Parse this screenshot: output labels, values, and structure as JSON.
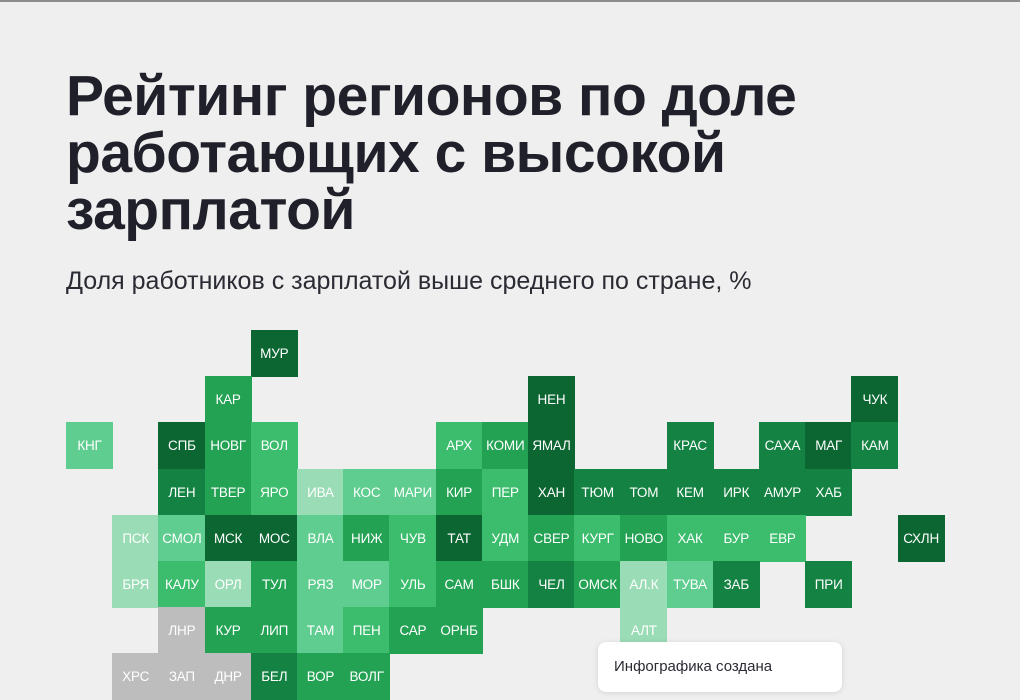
{
  "title_lines": [
    "Рейтинг регионов по доле",
    "работающих с высокой",
    "зарплатой"
  ],
  "subtitle": "Доля работников с зарплатой выше среднего по стране, %",
  "credit": "Инфографика создана",
  "colors": {
    "background": "#efefef",
    "text": "#1f2029",
    "shade_lightest": "#9adcb6",
    "shade_light": "#5fcd8f",
    "shade_mid": "#3bbd6d",
    "shade_strong": "#23a254",
    "shade_dark": "#138242",
    "shade_darkest": "#0b6632",
    "no_data": "#bdbdbd"
  },
  "regions": [
    {
      "label": "МУР",
      "shade": "darkest"
    },
    {
      "label": "КАР",
      "shade": "strong"
    },
    {
      "label": "НЕН",
      "shade": "darkest"
    },
    {
      "label": "ЧУК",
      "shade": "darkest"
    },
    {
      "label": "КНГ",
      "shade": "light"
    },
    {
      "label": "СПБ",
      "shade": "darkest"
    },
    {
      "label": "НОВГ",
      "shade": "strong"
    },
    {
      "label": "ВОЛ",
      "shade": "mid"
    },
    {
      "label": "АРХ",
      "shade": "mid"
    },
    {
      "label": "КОМИ",
      "shade": "strong"
    },
    {
      "label": "ЯМАЛ",
      "shade": "darkest"
    },
    {
      "label": "КРАС",
      "shade": "dark"
    },
    {
      "label": "САХА",
      "shade": "dark"
    },
    {
      "label": "МАГ",
      "shade": "darkest"
    },
    {
      "label": "КАМ",
      "shade": "dark"
    },
    {
      "label": "ЛЕН",
      "shade": "dark"
    },
    {
      "label": "ТВЕР",
      "shade": "strong"
    },
    {
      "label": "ЯРО",
      "shade": "mid"
    },
    {
      "label": "ИВА",
      "shade": "lightest"
    },
    {
      "label": "КОС",
      "shade": "light"
    },
    {
      "label": "МАРИ",
      "shade": "light"
    },
    {
      "label": "КИР",
      "shade": "strong"
    },
    {
      "label": "ПЕР",
      "shade": "mid"
    },
    {
      "label": "ХАН",
      "shade": "darkest"
    },
    {
      "label": "ТЮМ",
      "shade": "dark"
    },
    {
      "label": "ТОМ",
      "shade": "dark"
    },
    {
      "label": "КЕМ",
      "shade": "dark"
    },
    {
      "label": "ИРК",
      "shade": "dark"
    },
    {
      "label": "АМУР",
      "shade": "dark"
    },
    {
      "label": "ХАБ",
      "shade": "dark"
    },
    {
      "label": "ПСК",
      "shade": "lightest"
    },
    {
      "label": "СМОЛ",
      "shade": "light"
    },
    {
      "label": "МСК",
      "shade": "darkest"
    },
    {
      "label": "МОС",
      "shade": "darkest"
    },
    {
      "label": "ВЛА",
      "shade": "light"
    },
    {
      "label": "НИЖ",
      "shade": "strong"
    },
    {
      "label": "ЧУВ",
      "shade": "mid"
    },
    {
      "label": "ТАТ",
      "shade": "darkest"
    },
    {
      "label": "УДМ",
      "shade": "mid"
    },
    {
      "label": "СВЕР",
      "shade": "strong"
    },
    {
      "label": "КУРГ",
      "shade": "mid"
    },
    {
      "label": "НОВО",
      "shade": "strong"
    },
    {
      "label": "ХАК",
      "shade": "mid"
    },
    {
      "label": "БУР",
      "shade": "mid"
    },
    {
      "label": "ЕВР",
      "shade": "mid"
    },
    {
      "label": "СХЛН",
      "shade": "darkest"
    },
    {
      "label": "БРЯ",
      "shade": "lightest"
    },
    {
      "label": "КАЛУ",
      "shade": "mid"
    },
    {
      "label": "ОРЛ",
      "shade": "lightest"
    },
    {
      "label": "ТУЛ",
      "shade": "strong"
    },
    {
      "label": "РЯЗ",
      "shade": "light"
    },
    {
      "label": "МОР",
      "shade": "light"
    },
    {
      "label": "УЛЬ",
      "shade": "mid"
    },
    {
      "label": "САМ",
      "shade": "strong"
    },
    {
      "label": "БШК",
      "shade": "strong"
    },
    {
      "label": "ЧЕЛ",
      "shade": "dark"
    },
    {
      "label": "ОМСК",
      "shade": "strong"
    },
    {
      "label": "АЛ.К",
      "shade": "lightest"
    },
    {
      "label": "ТУВА",
      "shade": "light"
    },
    {
      "label": "ЗАБ",
      "shade": "dark"
    },
    {
      "label": "ПРИ",
      "shade": "dark"
    },
    {
      "label": "ЛНР",
      "shade": "no_data"
    },
    {
      "label": "КУР",
      "shade": "strong"
    },
    {
      "label": "ЛИП",
      "shade": "strong"
    },
    {
      "label": "ТАМ",
      "shade": "light"
    },
    {
      "label": "ПЕН",
      "shade": "mid"
    },
    {
      "label": "САР",
      "shade": "strong"
    },
    {
      "label": "ОРНБ",
      "shade": "strong"
    },
    {
      "label": "АЛТ",
      "shade": "lightest"
    },
    {
      "label": "ХРС",
      "shade": "no_data"
    },
    {
      "label": "ЗАП",
      "shade": "no_data"
    },
    {
      "label": "ДНР",
      "shade": "no_data"
    },
    {
      "label": "БЕЛ",
      "shade": "dark"
    },
    {
      "label": "ВОР",
      "shade": "strong"
    },
    {
      "label": "ВОЛГ",
      "shade": "strong"
    }
  ]
}
